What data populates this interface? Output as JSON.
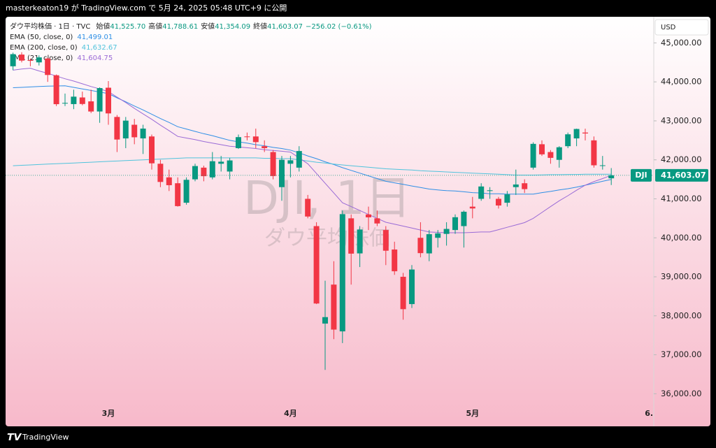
{
  "page": {
    "published_by": "masterkeaton19 が TradingView.com で 5月 24, 2025 05:48 UTC+9 に公開",
    "footer": "TradingView"
  },
  "chart_data": {
    "type": "candlestick",
    "title": "ダウ平均株価 · 1日 · TVC",
    "ohlc_legend": [
      {
        "label": "始値",
        "value": "41,525.70"
      },
      {
        "label": "高値",
        "value": "41,788.61"
      },
      {
        "label": "安値",
        "value": "41,354.09"
      },
      {
        "label": "終値",
        "value": "41,603.07"
      }
    ],
    "change_label": "−256.02 (−0.61%)",
    "watermark": "DJI, 1日",
    "watermark_sub": "ダウ平均株価",
    "currency": "USD",
    "symbol": "DJI",
    "last_price_label": "41,603.07",
    "up_color": "#089981",
    "down_color": "#f23645",
    "categories": [
      null,
      null,
      null,
      null,
      null,
      null,
      null,
      null,
      null,
      null,
      null,
      "3月",
      null,
      null,
      null,
      null,
      null,
      null,
      null,
      null,
      null,
      null,
      null,
      null,
      null,
      null,
      null,
      null,
      null,
      null,
      null,
      null,
      "4月",
      null,
      null,
      null,
      null,
      null,
      null,
      null,
      null,
      null,
      null,
      null,
      null,
      null,
      null,
      null,
      null,
      null,
      null,
      null,
      null,
      "5月",
      null,
      null,
      null,
      null,
      null,
      null,
      null,
      null,
      null,
      null,
      null,
      null,
      null,
      null,
      null,
      null,
      null,
      null,
      null,
      null,
      "6."
    ],
    "open": [
      44400,
      44700,
      44560,
      44500,
      44600,
      44170,
      43450,
      43430,
      43600,
      43500,
      43240,
      43850,
      43100,
      42550,
      42900,
      42550,
      42600,
      41900,
      41550,
      41400,
      40900,
      41500,
      41800,
      41550,
      41900,
      41700,
      42300,
      42600,
      42600,
      42350,
      42200,
      41300,
      41900,
      41800,
      41000,
      40300,
      37800,
      38800,
      37600,
      40500,
      39600,
      40600,
      40500,
      40200,
      39700,
      39000,
      38300,
      40000,
      39600,
      40000,
      40100,
      40200,
      40300,
      40800,
      41000,
      41200,
      41000,
      40900,
      41300,
      41400,
      41800,
      42400,
      42200,
      42000,
      42350,
      42550,
      42700,
      42500,
      41850,
      41525.7,
      null,
      null,
      null,
      null,
      null
    ],
    "high": [
      44750,
      44760,
      44600,
      44680,
      44620,
      44190,
      43700,
      43800,
      43750,
      43800,
      43860,
      44020,
      43150,
      43100,
      43050,
      42900,
      42650,
      42000,
      41750,
      41550,
      41550,
      41900,
      41850,
      42200,
      42100,
      42050,
      42650,
      42700,
      42800,
      42500,
      42250,
      42100,
      42100,
      42350,
      41100,
      40400,
      38900,
      39400,
      40700,
      40600,
      40300,
      40800,
      40700,
      40300,
      39900,
      39100,
      39300,
      40400,
      40200,
      40200,
      40400,
      40600,
      40700,
      41050,
      41400,
      41300,
      41050,
      41200,
      41750,
      41500,
      42450,
      42500,
      42250,
      42350,
      42700,
      42800,
      42800,
      42600,
      42100,
      41788.61,
      null,
      null,
      null,
      null,
      null
    ],
    "low": [
      44300,
      44500,
      44400,
      44420,
      44000,
      43380,
      43380,
      43300,
      43400,
      43200,
      42950,
      42900,
      42200,
      42300,
      42400,
      42150,
      41750,
      41300,
      41200,
      40800,
      40850,
      41450,
      41450,
      41500,
      41700,
      41500,
      42280,
      42500,
      42300,
      42200,
      41500,
      40950,
      41550,
      41700,
      40500,
      38300,
      36611,
      37400,
      37300,
      38800,
      39250,
      40200,
      40300,
      39300,
      39050,
      37900,
      38200,
      39500,
      39400,
      39750,
      39800,
      40100,
      39750,
      40500,
      40950,
      41000,
      40750,
      40800,
      41100,
      41150,
      41750,
      42100,
      41900,
      41800,
      42300,
      42350,
      42500,
      41800,
      41750,
      41354.09,
      null,
      null,
      null,
      null,
      null
    ],
    "close": [
      44711,
      44546,
      44556,
      44628,
      44177,
      43428,
      43461,
      43621,
      43433,
      43240,
      43841,
      43191,
      42521,
      43006,
      42579,
      42802,
      41911,
      41433,
      41350,
      40813,
      41488,
      41841,
      41581,
      41965,
      41953,
      41985,
      42583,
      42587,
      42455,
      42300,
      41584,
      42002,
      41989,
      42226,
      40546,
      38315,
      37966,
      37646,
      40608,
      39594,
      40213,
      40525,
      40368,
      39669,
      39142,
      38170,
      39187,
      39607,
      40093,
      40114,
      40228,
      40528,
      40669,
      40753,
      41317,
      41219,
      40829,
      41114,
      41368,
      41249,
      42410,
      42141,
      42051,
      42323,
      42655,
      42792,
      42677,
      41860,
      41860,
      41603.07,
      null,
      null,
      null,
      null,
      null
    ],
    "series": [
      {
        "name": "EMA (50, close, 0)",
        "value_label": "41,499.01",
        "color": "#2f8fe6",
        "values": [
          43850,
          43860,
          43870,
          43880,
          43890,
          43895,
          43900,
          43860,
          43820,
          43780,
          43740,
          43700,
          43590,
          43490,
          43380,
          43280,
          43170,
          43060,
          42960,
          42850,
          42790,
          42730,
          42670,
          42620,
          42560,
          42500,
          42460,
          42430,
          42390,
          42360,
          42320,
          42290,
          42250,
          42180,
          42100,
          42030,
          41950,
          41880,
          41800,
          41730,
          41660,
          41590,
          41520,
          41450,
          41410,
          41370,
          41330,
          41290,
          41250,
          41230,
          41210,
          41200,
          41180,
          41160,
          41150,
          41130,
          41130,
          41120,
          41120,
          41120,
          41120,
          41160,
          41190,
          41230,
          41260,
          41300,
          41350,
          41400,
          41450,
          41499.01,
          null,
          null,
          null,
          null,
          null
        ]
      },
      {
        "name": "EMA (200, close, 0)",
        "value_label": "41,632.67",
        "color": "#4fc3dc",
        "values": [
          41850,
          41860,
          41870,
          41880,
          41890,
          41900,
          41910,
          41920,
          41930,
          41940,
          41950,
          41960,
          41970,
          41980,
          41990,
          42000,
          42010,
          42020,
          42030,
          42040,
          42050,
          42050,
          42050,
          42050,
          42050,
          42050,
          42050,
          42050,
          42050,
          42040,
          42040,
          42030,
          42030,
          42000,
          41970,
          41940,
          41920,
          41890,
          41870,
          41850,
          41830,
          41810,
          41790,
          41770,
          41760,
          41750,
          41740,
          41720,
          41710,
          41700,
          41690,
          41680,
          41670,
          41660,
          41650,
          41640,
          41630,
          41620,
          41610,
          41610,
          41610,
          41615,
          41620,
          41620,
          41625,
          41625,
          41630,
          41630,
          41632,
          41632.67,
          null,
          null,
          null,
          null,
          null
        ]
      },
      {
        "name": "EMA (21, close, 0)",
        "value_label": "41,604.75",
        "color": "#9a6bd6",
        "values": [
          44300,
          44330,
          44350,
          44280,
          44220,
          44150,
          44080,
          44020,
          43950,
          43880,
          43820,
          43750,
          43610,
          43470,
          43320,
          43180,
          43040,
          42890,
          42750,
          42600,
          42560,
          42520,
          42470,
          42430,
          42390,
          42350,
          42330,
          42310,
          42290,
          42260,
          42240,
          42220,
          42200,
          42050,
          41900,
          41650,
          41400,
          41150,
          40900,
          40800,
          40700,
          40600,
          40500,
          40400,
          40350,
          40300,
          40250,
          40200,
          40150,
          40140,
          40130,
          40130,
          40130,
          40140,
          40150,
          40150,
          40210,
          40270,
          40330,
          40390,
          40500,
          40650,
          40800,
          40950,
          41080,
          41220,
          41350,
          41440,
          41520,
          41604.75,
          null,
          null,
          null,
          null,
          null
        ]
      }
    ],
    "ylim": [
      35200,
      45670
    ],
    "yticks": [
      {
        "value": 36000,
        "label": "36,000.00"
      },
      {
        "value": 37000,
        "label": "37,000.00"
      },
      {
        "value": 38000,
        "label": "38,000.00"
      },
      {
        "value": 39000,
        "label": "39,000.00"
      },
      {
        "value": 40000,
        "label": "40,000.00"
      },
      {
        "value": 41000,
        "label": "41,000.00"
      },
      {
        "value": 42000,
        "label": "42,000.00"
      },
      {
        "value": 43000,
        "label": "43,000.00"
      },
      {
        "value": 44000,
        "label": "44,000.00"
      },
      {
        "value": 45000,
        "label": "45,000.00"
      }
    ]
  }
}
